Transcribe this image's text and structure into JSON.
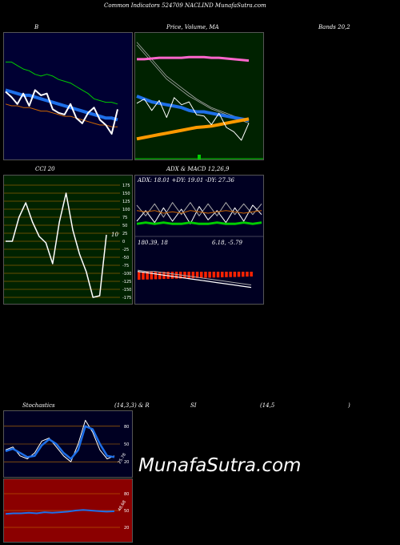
{
  "page_title": "Common Indicators 524709 NACLIND MunafaSutra.com",
  "watermark": "MunafaSutra.com",
  "colors": {
    "bollinger_bg": "#000033",
    "price_ma_bg": "#002200",
    "cci_bg": "#002200",
    "adx_macd_bg": "#000022",
    "stoch_bg": "#000022",
    "rsi_bg": "#8b0000",
    "grid_orange": "#cc7700",
    "white": "#ffffff",
    "blue": "#1e6fe8",
    "green": "#00cc00",
    "orange": "#ff9900",
    "pink": "#ff66cc",
    "brown": "#cc6600",
    "red": "#ff2200",
    "grey": "#aaaaaa"
  },
  "labels": {
    "bollinger": "B",
    "bollinger_right": "Bands 20,2",
    "price_ma": "Price,  Volume, MA",
    "cci": "CCI 20",
    "adx_macd": "ADX  & MACD 12,26,9",
    "adx_line": "ADX: 18.01 +DY: 19.01 -DY: 27.36",
    "macd_line_a": "180.39,  18",
    "macd_line_b": "6.18,  -5.79",
    "cci_value": "10",
    "stochastics": "Stochastics",
    "stoch_params": "(14,3,3) & R",
    "rsi_si": "SI",
    "rsi_params": "(14,5",
    "rsi_close": ")",
    "stoch_value": "25.78",
    "rsi_value": "48.68"
  },
  "chart_data": [
    {
      "type": "line",
      "title": "Bollinger Bands 20,2",
      "series": [
        {
          "values": [
            82,
            82,
            80,
            78,
            77,
            75,
            74,
            75,
            74,
            72,
            71,
            70,
            68,
            66,
            64,
            61,
            60,
            59,
            59,
            58
          ]
        },
        {
          "values": [
            66,
            65,
            64,
            63,
            63,
            62,
            61,
            60,
            59,
            58,
            57,
            56,
            55,
            54,
            53,
            52,
            51,
            50,
            50,
            49
          ]
        },
        {
          "values": [
            58,
            57,
            57,
            56,
            56,
            55,
            54,
            54,
            53,
            52,
            51,
            51,
            50,
            49,
            48,
            47,
            46,
            46,
            45,
            45
          ]
        },
        {
          "values": [
            65,
            62,
            58,
            64,
            57,
            66,
            63,
            64,
            55,
            53,
            52,
            58,
            50,
            47,
            53,
            56,
            49,
            46,
            41,
            55
          ]
        }
      ]
    },
    {
      "type": "line",
      "title": "Price, Volume, MA",
      "series": [
        {
          "values": [
            86,
            86,
            86.5,
            87,
            87,
            87,
            87,
            87.5,
            87.5,
            87.5,
            87,
            87,
            86.5,
            86,
            85.5,
            85
          ]
        },
        {
          "values": [
            60,
            58,
            56,
            55,
            54,
            53,
            52,
            50,
            49,
            49,
            48,
            47,
            46,
            45,
            44,
            43
          ]
        },
        {
          "values": [
            30,
            31,
            32,
            33,
            34,
            35,
            36,
            37,
            38,
            38.5,
            39,
            40,
            41,
            42,
            43,
            44
          ]
        },
        {
          "values": [
            55,
            58,
            50,
            57,
            45,
            59,
            54,
            56,
            47,
            46,
            40,
            48,
            38,
            35,
            29,
            41
          ]
        }
      ]
    },
    {
      "type": "line",
      "title": "CCI 20",
      "ylim": [
        -175,
        175
      ],
      "yticks": [
        175,
        150,
        125,
        100,
        75,
        50,
        25,
        0,
        -25,
        -50,
        -75,
        -100,
        -125,
        -150,
        -175
      ],
      "values": [
        0,
        0,
        75,
        120,
        60,
        15,
        -5,
        -70,
        60,
        150,
        35,
        -40,
        -95,
        -175,
        -170,
        20
      ]
    },
    {
      "type": "line",
      "title": "ADX & MACD 12,26,9",
      "series": [
        {
          "name": "ADX",
          "values": [
            18,
            17,
            16,
            17,
            19,
            18,
            17,
            16,
            18,
            19,
            18,
            17,
            18,
            17,
            18
          ]
        },
        {
          "name": "+DY",
          "values": [
            14,
            22,
            13,
            24,
            14,
            23,
            12,
            25,
            15,
            22,
            13,
            24,
            14,
            26,
            19
          ]
        },
        {
          "name": "-DY",
          "values": [
            26,
            18,
            27,
            17,
            28,
            19,
            28,
            18,
            27,
            18,
            28,
            19,
            27,
            19,
            27
          ]
        }
      ]
    },
    {
      "type": "line",
      "title": "Stochastics (14,3,3)",
      "ylim": [
        0,
        100
      ],
      "yticks": [
        80,
        50,
        20
      ],
      "series": [
        {
          "values": [
            40,
            45,
            30,
            25,
            35,
            55,
            60,
            45,
            30,
            20,
            50,
            90,
            70,
            40,
            25,
            30
          ]
        },
        {
          "values": [
            38,
            42,
            35,
            28,
            30,
            48,
            58,
            50,
            35,
            25,
            40,
            80,
            75,
            50,
            30,
            28
          ]
        }
      ]
    },
    {
      "type": "line",
      "title": "RSI (14,5)",
      "ylim": [
        0,
        100
      ],
      "yticks": [
        80,
        50,
        20
      ],
      "values": [
        44,
        45,
        45,
        46,
        45,
        47,
        46,
        47,
        48,
        50,
        51,
        50,
        49,
        48,
        48.68
      ]
    }
  ]
}
